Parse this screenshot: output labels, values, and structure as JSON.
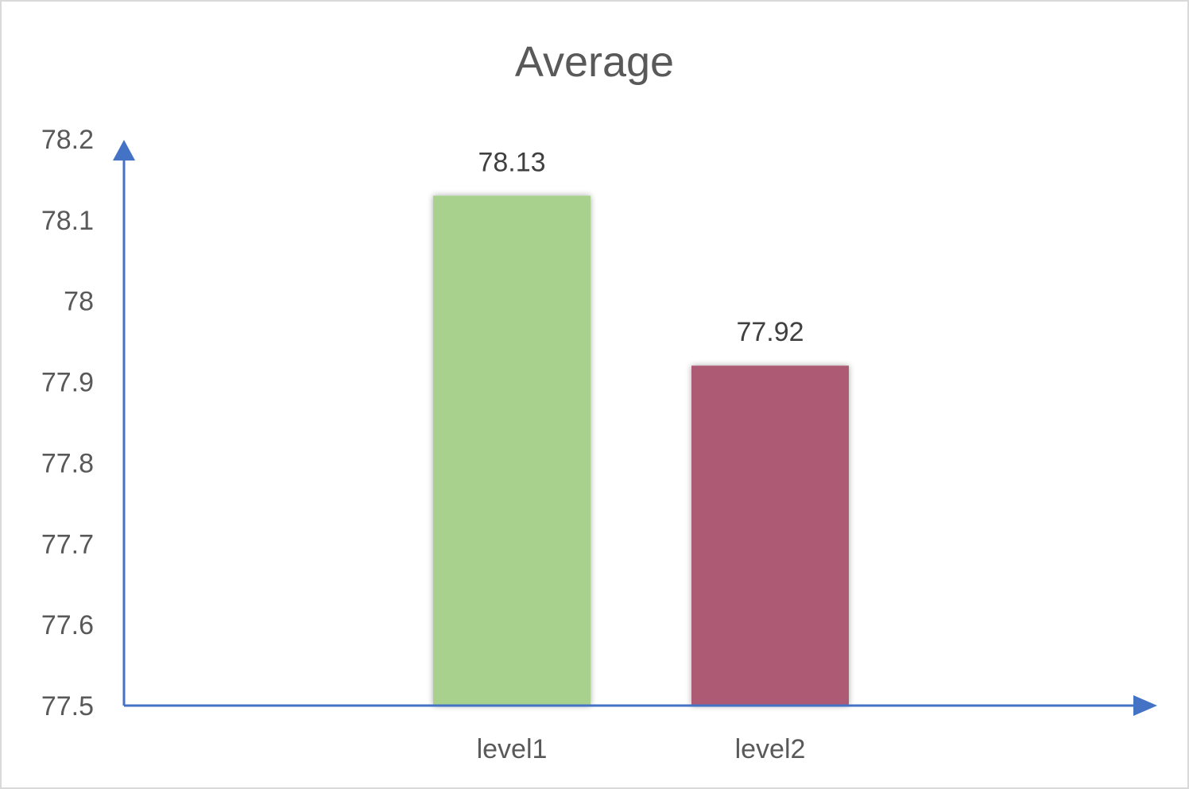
{
  "chart_data": {
    "type": "bar",
    "title": "Average",
    "xlabel": "",
    "ylabel": "",
    "categories": [
      "level1",
      "level2"
    ],
    "values": [
      78.13,
      77.92
    ],
    "data_labels": [
      "78.13",
      "77.92"
    ],
    "bar_colors": [
      "#a9d18e",
      "#ad5a74"
    ],
    "axis_color": "#4472c4",
    "ylim": [
      77.5,
      78.2
    ],
    "yticks": [
      "77.5",
      "77.6",
      "77.7",
      "77.8",
      "77.9",
      "78",
      "78.1",
      "78.2"
    ],
    "grid": false,
    "legend": "none"
  }
}
